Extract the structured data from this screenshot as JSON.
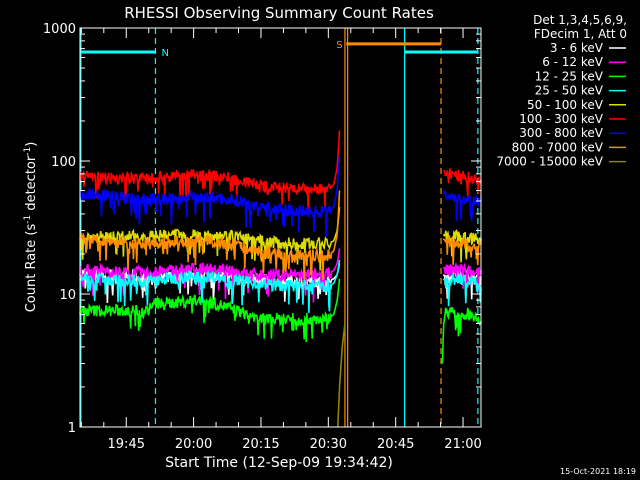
{
  "chart_data": {
    "type": "line",
    "title": "RHESSI Observing Summary Count Rates",
    "xlabel": "Start Time (12-Sep-09 19:34:42)",
    "ylabel_main": "Count Rate (s",
    "ylabel_sup1": "-1",
    "ylabel_mid": " detector",
    "ylabel_sup2": "-1",
    "ylabel_end": ")",
    "yscale": "log",
    "ylim": [
      1,
      1000
    ],
    "xlim_min": [
      0,
      89.3
    ],
    "x_ticks": [
      {
        "label": "19:45",
        "t": 10.3
      },
      {
        "label": "20:00",
        "t": 25.3
      },
      {
        "label": "20:15",
        "t": 40.3
      },
      {
        "label": "20:30",
        "t": 55.3
      },
      {
        "label": "20:45",
        "t": 70.3
      },
      {
        "label": "21:00",
        "t": 85.3
      }
    ],
    "y_ticks": [
      {
        "label": "1",
        "v": 1
      },
      {
        "label": "10",
        "v": 10
      },
      {
        "label": "100",
        "v": 100
      },
      {
        "label": "1000",
        "v": 1000
      }
    ],
    "legend_header": [
      "Det 1,3,4,5,6,9,",
      "FDecim 1, Att 0"
    ],
    "timestamp": "15-Oct-2021 18:19",
    "flags": [
      {
        "label": "N",
        "color": "#00ffff",
        "t_start": 0,
        "t_end": 16.8,
        "level": 660,
        "labelled": true
      },
      {
        "label": "",
        "color": "#00ffff",
        "t_start": 72.3,
        "t_end": 88.6,
        "level": 660,
        "labelled": false
      },
      {
        "label": "S",
        "color": "#ff8c00",
        "t_start": 59.3,
        "t_end": 80.4,
        "level": 760,
        "labelled": true
      }
    ],
    "series": [
      {
        "name": "3 - 6 keV",
        "color": "#ffffff",
        "segments": [
          {
            "x": [
              0,
              5,
              10,
              15,
              20,
              25,
              30,
              35,
              40,
              45,
              50,
              55,
              56.5,
              57.3,
              57.8
            ],
            "y": [
              14,
              14,
              13.5,
              13,
              13.5,
              14,
              14,
              13,
              13,
              12.5,
              12.5,
              12.5,
              13,
              14,
              17
            ]
          },
          {
            "x": [
              80.9,
              81.5,
              84,
              87,
              89.3
            ],
            "y": [
              14,
              13.5,
              14,
              13.5,
              13
            ]
          }
        ]
      },
      {
        "name": "6 - 12 keV",
        "color": "#ff00ff",
        "segments": [
          {
            "x": [
              0,
              5,
              10,
              15,
              20,
              25,
              30,
              35,
              40,
              45,
              50,
              55,
              56.5,
              57.3,
              57.8
            ],
            "y": [
              15,
              15,
              14.5,
              14.5,
              15,
              15.5,
              15.5,
              14.5,
              14,
              14,
              14,
              14,
              15,
              17,
              22
            ]
          },
          {
            "x": [
              80.9,
              81.5,
              84,
              87,
              89.3
            ],
            "y": [
              16,
              15,
              15.5,
              15,
              15
            ]
          }
        ]
      },
      {
        "name": "12 - 25 keV",
        "color": "#00ff00",
        "segments": [
          {
            "x": [
              0,
              5,
              10,
              15,
              17,
              20,
              25,
              30,
              35,
              40,
              45,
              50,
              55,
              56.5,
              57.3,
              57.8
            ],
            "y": [
              7.5,
              7.5,
              7.5,
              7.5,
              8.5,
              8.5,
              9,
              8.5,
              7.5,
              6.5,
              6.5,
              6.5,
              6.5,
              7,
              9,
              13
            ]
          },
          {
            "x": [
              80.7,
              81,
              81.5,
              84,
              87,
              89.3
            ],
            "y": [
              3,
              6,
              7.5,
              7,
              7,
              6.5
            ]
          }
        ]
      },
      {
        "name": "25 - 50 keV",
        "color": "#00ffff",
        "segments": [
          {
            "x": [
              0,
              5,
              10,
              15,
              20,
              25,
              30,
              35,
              40,
              45,
              50,
              55,
              56.5,
              57.3,
              57.8
            ],
            "y": [
              13,
              13,
              12.5,
              12.5,
              13,
              13.5,
              13.5,
              12.5,
              12,
              11.5,
              11.5,
              11.5,
              12,
              14,
              18
            ]
          },
          {
            "x": [
              80.9,
              81.5,
              84,
              87,
              89.3
            ],
            "y": [
              13,
              12.5,
              13,
              12.5,
              12
            ]
          }
        ]
      },
      {
        "name": "50 - 100 keV",
        "color": "#dddd00",
        "segments": [
          {
            "x": [
              0,
              5,
              10,
              15,
              20,
              25,
              30,
              35,
              40,
              45,
              50,
              55,
              56.5,
              57.3,
              57.8
            ],
            "y": [
              27,
              27,
              27,
              27,
              27.5,
              28,
              28,
              27,
              25,
              24,
              24,
              24,
              25,
              30,
              45
            ]
          },
          {
            "x": [
              80.9,
              81.5,
              84,
              87,
              89.3
            ],
            "y": [
              28,
              27,
              27,
              26,
              26
            ]
          }
        ]
      },
      {
        "name": "100 - 300 keV",
        "color": "#ff0000",
        "segments": [
          {
            "x": [
              0,
              5,
              10,
              15,
              20,
              25,
              30,
              35,
              40,
              45,
              50,
              55,
              56.5,
              57.3,
              57.8
            ],
            "y": [
              77,
              76,
              74,
              75,
              77,
              78,
              78,
              72,
              66,
              62,
              61,
              62,
              66,
              90,
              170
            ]
          },
          {
            "x": [
              80.9,
              81.5,
              84,
              87,
              89.3
            ],
            "y": [
              85,
              82,
              78,
              75,
              72
            ]
          }
        ]
      },
      {
        "name": "300 - 800 keV",
        "color": "#0000ff",
        "segments": [
          {
            "x": [
              0,
              5,
              10,
              15,
              20,
              25,
              30,
              35,
              40,
              45,
              50,
              55,
              56.5,
              57.3,
              57.8
            ],
            "y": [
              57,
              56,
              53,
              52,
              52,
              53,
              53,
              50,
              46,
              43,
              42,
              42,
              45,
              62,
              110
            ]
          },
          {
            "x": [
              80.9,
              81.5,
              84,
              87,
              89.3
            ],
            "y": [
              58,
              56,
              53,
              50,
              48
            ]
          }
        ]
      },
      {
        "name": "800 - 7000 keV",
        "color": "#ff8c00",
        "segments": [
          {
            "x": [
              0,
              5,
              10,
              15,
              20,
              25,
              30,
              35,
              40,
              45,
              50,
              55,
              56.5,
              57.3,
              57.8
            ],
            "y": [
              26,
              25,
              24,
              24,
              24.5,
              25,
              25,
              23,
              21,
              20,
              19.5,
              19.5,
              21,
              28,
              60
            ]
          },
          {
            "x": [
              80.9,
              81.5,
              84,
              87,
              89.3
            ],
            "y": [
              26,
              25,
              24,
              23,
              23
            ]
          }
        ]
      },
      {
        "name": "7000 - 15000 keV",
        "color": "#888800",
        "segments": [
          {
            "x": [
              57.4,
              57.8,
              58.4,
              59.0
            ],
            "y": [
              1,
              2,
              4,
              6
            ]
          }
        ]
      }
    ],
    "vlines": [
      {
        "t": 0.2,
        "color": "#00ffff",
        "style": "solid"
      },
      {
        "t": 16.8,
        "color": "#00ffff",
        "style": "dashed"
      },
      {
        "t": 59.0,
        "color": "#ff8c00",
        "style": "solid"
      },
      {
        "t": 59.6,
        "color": "#ff8c00",
        "style": "solid"
      },
      {
        "t": 72.3,
        "color": "#00ffff",
        "style": "solid"
      },
      {
        "t": 80.4,
        "color": "#ff8c00",
        "style": "dashed"
      },
      {
        "t": 88.6,
        "color": "#00ffff",
        "style": "dashed"
      }
    ]
  }
}
